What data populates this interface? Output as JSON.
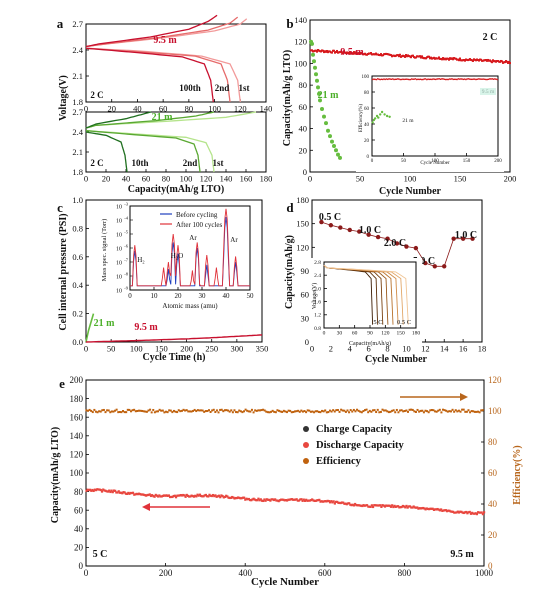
{
  "chart_data": [
    {
      "panel": "a",
      "type": "line",
      "subplots": [
        {
          "id": "top",
          "ylabel": "Voltage(V)",
          "xlim": [
            0,
            140
          ],
          "ylim": [
            1.8,
            2.7
          ],
          "xticks": [
            0,
            20,
            40,
            60,
            80,
            100,
            120,
            140
          ],
          "yticks": [
            1.8,
            2.1,
            2.4,
            2.7
          ],
          "annotations": [
            "9.5 m",
            "2 C",
            "100th",
            "2nd",
            "1st"
          ],
          "series": [
            {
              "name": "1st",
              "color": "#f29a9a",
              "charge": [
                [
                  0,
                  2.44
                ],
                [
                  10,
                  2.46
                ],
                [
                  60,
                  2.54
                ],
                [
                  100,
                  2.62
                ],
                [
                  120,
                  2.7
                ],
                [
                  125,
                  2.76
                ]
              ],
              "discharge": [
                [
                  0,
                  2.42
                ],
                [
                  40,
                  2.39
                ],
                [
                  90,
                  2.33
                ],
                [
                  112,
                  2.24
                ],
                [
                  118,
                  2.05
                ],
                [
                  120,
                  1.8
                ]
              ]
            },
            {
              "name": "2nd",
              "color": "#e66b6b",
              "charge": [
                [
                  0,
                  2.44
                ],
                [
                  10,
                  2.46
                ],
                [
                  60,
                  2.55
                ],
                [
                  95,
                  2.63
                ],
                [
                  112,
                  2.71
                ],
                [
                  118,
                  2.78
                ]
              ],
              "discharge": [
                [
                  0,
                  2.42
                ],
                [
                  40,
                  2.38
                ],
                [
                  85,
                  2.33
                ],
                [
                  105,
                  2.24
                ],
                [
                  110,
                  2.05
                ],
                [
                  112,
                  1.8
                ]
              ]
            },
            {
              "name": "100th",
              "color": "#c8102e",
              "charge": [
                [
                  0,
                  2.44
                ],
                [
                  10,
                  2.47
                ],
                [
                  50,
                  2.55
                ],
                [
                  80,
                  2.64
                ],
                [
                  95,
                  2.73
                ],
                [
                  102,
                  2.8
                ]
              ],
              "discharge": [
                [
                  0,
                  2.42
                ],
                [
                  40,
                  2.37
                ],
                [
                  75,
                  2.32
                ],
                [
                  92,
                  2.24
                ],
                [
                  97,
                  2.05
                ],
                [
                  99,
                  1.8
                ]
              ]
            }
          ]
        },
        {
          "id": "bottom",
          "xlabel": "Capacity(mAh/g LTO)",
          "xlim": [
            0,
            180
          ],
          "ylim": [
            1.8,
            2.7
          ],
          "xticks": [
            0,
            20,
            40,
            60,
            80,
            100,
            120,
            140,
            160,
            180
          ],
          "yticks": [
            1.8,
            2.1,
            2.4,
            2.7
          ],
          "annotations": [
            "21 m",
            "2 C",
            "10th",
            "2nd",
            "1st"
          ],
          "series": [
            {
              "name": "1st",
              "color": "#b5e48c",
              "charge": [
                [
                  0,
                  2.46
                ],
                [
                  10,
                  2.5
                ],
                [
                  80,
                  2.56
                ],
                [
                  140,
                  2.62
                ],
                [
                  170,
                  2.7
                ]
              ],
              "discharge": [
                [
                  0,
                  2.42
                ],
                [
                  40,
                  2.38
                ],
                [
                  100,
                  2.32
                ],
                [
                  120,
                  2.24
                ],
                [
                  126,
                  2.05
                ],
                [
                  128,
                  1.8
                ]
              ]
            },
            {
              "name": "2nd",
              "color": "#5aa832",
              "charge": [
                [
                  0,
                  2.46
                ],
                [
                  10,
                  2.5
                ],
                [
                  70,
                  2.57
                ],
                [
                  110,
                  2.64
                ],
                [
                  128,
                  2.7
                ]
              ],
              "discharge": [
                [
                  0,
                  2.42
                ],
                [
                  40,
                  2.37
                ],
                [
                  90,
                  2.31
                ],
                [
                  108,
                  2.22
                ],
                [
                  112,
                  2.05
                ],
                [
                  114,
                  1.8
                ]
              ]
            },
            {
              "name": "10th",
              "color": "#1f6f1f",
              "charge": [
                [
                  0,
                  2.46
                ],
                [
                  10,
                  2.52
                ],
                [
                  40,
                  2.6
                ],
                [
                  55,
                  2.66
                ],
                [
                  65,
                  2.7
                ]
              ],
              "discharge": [
                [
                  0,
                  2.4
                ],
                [
                  20,
                  2.35
                ],
                [
                  35,
                  2.25
                ],
                [
                  39,
                  2.05
                ],
                [
                  41,
                  1.8
                ]
              ]
            }
          ]
        }
      ]
    },
    {
      "panel": "b",
      "type": "scatter",
      "xlabel": "Cycle Number",
      "ylabel": "Capacity(mAh/g LTO)",
      "xlim": [
        0,
        200
      ],
      "ylim": [
        0,
        140
      ],
      "xticks": [
        0,
        50,
        100,
        150,
        200
      ],
      "yticks": [
        0,
        20,
        40,
        60,
        80,
        100,
        120,
        140
      ],
      "annotations": [
        "2 C",
        "9.5 m",
        "21 m"
      ],
      "series": [
        {
          "name": "9.5 m",
          "color": "#d7191c",
          "x_range": [
            1,
            200
          ],
          "start": 112,
          "end": 101
        },
        {
          "name": "21 m",
          "color": "#66bd3f",
          "points": [
            [
              1,
              120
            ],
            [
              2,
              118
            ],
            [
              3,
              108
            ],
            [
              4,
              102
            ],
            [
              5,
              96
            ],
            [
              6,
              90
            ],
            [
              7,
              84
            ],
            [
              8,
              78
            ],
            [
              9,
              72
            ],
            [
              10,
              66
            ],
            [
              12,
              58
            ],
            [
              14,
              51
            ],
            [
              16,
              45
            ],
            [
              18,
              38
            ],
            [
              20,
              33
            ],
            [
              22,
              28
            ],
            [
              24,
              24
            ],
            [
              26,
              20
            ],
            [
              28,
              16
            ],
            [
              30,
              13
            ]
          ]
        }
      ],
      "inset": {
        "xlabel": "Cycle Number",
        "ylabel": "Efficiency(%)",
        "xlim": [
          0,
          200
        ],
        "ylim": [
          0,
          100
        ],
        "xticks": [
          0,
          50,
          100,
          150,
          200
        ],
        "yticks": [
          0,
          20,
          40,
          60,
          80,
          100
        ],
        "annotations": [
          "9.5 m",
          "21 m"
        ],
        "series": [
          {
            "name": "9.5 m",
            "color": "#d7191c",
            "x_range": [
              1,
              200
            ],
            "value": 96
          },
          {
            "name": "21 m",
            "color": "#66bd3f",
            "points": [
              [
                1,
                42
              ],
              [
                3,
                45
              ],
              [
                5,
                47
              ],
              [
                8,
                50
              ],
              [
                10,
                48
              ],
              [
                13,
                52
              ],
              [
                16,
                55
              ],
              [
                20,
                52
              ],
              [
                24,
                50
              ],
              [
                28,
                49
              ]
            ]
          }
        ]
      }
    },
    {
      "panel": "c",
      "type": "line",
      "xlabel": "Cycle Time (h)",
      "ylabel": "Cell internal pressure (PSI)",
      "xlim": [
        0,
        350
      ],
      "ylim": [
        0.0,
        1.0
      ],
      "xticks": [
        0,
        50,
        100,
        150,
        200,
        250,
        300,
        350
      ],
      "yticks": [
        0.0,
        0.2,
        0.4,
        0.6,
        0.8,
        1.0
      ],
      "annotations": [
        "21 m",
        "9.5 m"
      ],
      "series": [
        {
          "name": "21 m",
          "color": "#66bd3f",
          "points": [
            [
              0,
              0
            ],
            [
              5,
              0.08
            ],
            [
              10,
              0.14
            ],
            [
              15,
              0.2
            ]
          ]
        },
        {
          "name": "9.5 m",
          "color": "#c8102e",
          "points": [
            [
              0,
              0
            ],
            [
              50,
              0.005
            ],
            [
              100,
              0.01
            ],
            [
              150,
              0.016
            ],
            [
              200,
              0.022
            ],
            [
              250,
              0.03
            ],
            [
              300,
              0.04
            ],
            [
              350,
              0.05
            ]
          ]
        }
      ],
      "inset": {
        "xlabel": "Atomic mass (amu)",
        "ylabel": "Mass spec. signal (Torr)",
        "xlim": [
          0,
          50
        ],
        "xticks": [
          0,
          10,
          20,
          30,
          40,
          50
        ],
        "yticks_exp": [
          -9,
          -8,
          -7,
          -6,
          -5,
          -4,
          -3
        ],
        "legend": [
          "Before cycling",
          "After 100 cycles"
        ],
        "peak_labels": [
          "H₂",
          "H₂O",
          "Ar",
          "Ar"
        ],
        "peaks_before": [
          [
            2,
            -6.2
          ],
          [
            16,
            -7.5
          ],
          [
            18,
            -5.6
          ],
          [
            20,
            -6.4
          ],
          [
            28,
            -6.0
          ],
          [
            32,
            -7.2
          ],
          [
            40,
            -3.8
          ],
          [
            44,
            -7.0
          ]
        ],
        "peaks_after": [
          [
            2,
            -5.8
          ],
          [
            14,
            -7.4
          ],
          [
            16,
            -7.0
          ],
          [
            18,
            -5.0
          ],
          [
            20,
            -5.8
          ],
          [
            26,
            -7.6
          ],
          [
            28,
            -5.6
          ],
          [
            32,
            -6.5
          ],
          [
            36,
            -7.4
          ],
          [
            40,
            -3.2
          ],
          [
            44,
            -6.6
          ]
        ]
      }
    },
    {
      "panel": "d",
      "type": "scatter",
      "xlabel": "Cycle Number",
      "ylabel": "Capacity(mAh/g)",
      "xlim": [
        0,
        18
      ],
      "ylim": [
        0,
        180
      ],
      "xticks": [
        0,
        2,
        4,
        6,
        8,
        10,
        12,
        14,
        16,
        18
      ],
      "yticks": [
        0,
        30,
        60,
        90,
        120,
        150,
        180
      ],
      "rate_labels": [
        "0.5 C",
        "1.0 C",
        "2.0 C",
        "5.0 C",
        "1.0 C"
      ],
      "points": [
        [
          1,
          152
        ],
        [
          2,
          148
        ],
        [
          3,
          145
        ],
        [
          4,
          142
        ],
        [
          5,
          140
        ],
        [
          6,
          136
        ],
        [
          7,
          133
        ],
        [
          8,
          131
        ],
        [
          9,
          125
        ],
        [
          10,
          121
        ],
        [
          11,
          119
        ],
        [
          12,
          100
        ],
        [
          13,
          96
        ],
        [
          14,
          96
        ],
        [
          15,
          131
        ],
        [
          16,
          131
        ],
        [
          17,
          131
        ]
      ],
      "inset": {
        "xlabel": "Capacity(mAh/g)",
        "ylabel": "Voltage(V)",
        "xlim": [
          0,
          180
        ],
        "ylim": [
          0.8,
          2.8
        ],
        "xticks": [
          0,
          30,
          60,
          90,
          120,
          150,
          180
        ],
        "yticks": [
          0.8,
          1.2,
          1.6,
          2.0,
          2.4,
          2.8
        ],
        "annotations": [
          "5 C",
          "0.5 C"
        ],
        "curve_ends": [
          95,
          105,
          115,
          125,
          135,
          145,
          155,
          165
        ]
      }
    },
    {
      "panel": "e",
      "type": "scatter",
      "xlabel": "Cycle Number",
      "ylabel": "Capacity(mAh/g LTO)",
      "ylabel_right": "Efficiency(%)",
      "xlim": [
        0,
        1000
      ],
      "ylim": [
        0,
        200
      ],
      "ylim_right": [
        0,
        120
      ],
      "xticks": [
        0,
        200,
        400,
        600,
        800,
        1000
      ],
      "yticks": [
        0,
        20,
        40,
        60,
        80,
        100,
        120,
        140,
        160,
        180,
        200
      ],
      "yticks_right": [
        0,
        20,
        40,
        60,
        80,
        100,
        120
      ],
      "legend": [
        "Charge Capacity",
        "Discharge Capacity",
        "Efficiency"
      ],
      "annotations": [
        "5 C",
        "9.5 m"
      ],
      "series": [
        {
          "name": "Charge Capacity",
          "color": "#333333"
        },
        {
          "name": "Discharge Capacity",
          "color": "#e8473f",
          "trend": [
            [
              1,
              82
            ],
            [
              100,
              78
            ],
            [
              200,
              76
            ],
            [
              300,
              75
            ],
            [
              400,
              73
            ],
            [
              500,
              71
            ],
            [
              600,
              69
            ],
            [
              700,
              66
            ],
            [
              800,
              63
            ],
            [
              900,
              60
            ],
            [
              1000,
              57
            ]
          ]
        },
        {
          "name": "Efficiency",
          "color": "#c0620e",
          "value": 100
        }
      ]
    }
  ],
  "colors": {
    "red": "#d7191c",
    "green": "#66bd3f",
    "darkred": "#8b1a1a",
    "brown": "#b8661c",
    "orange": "#cc7a22"
  }
}
